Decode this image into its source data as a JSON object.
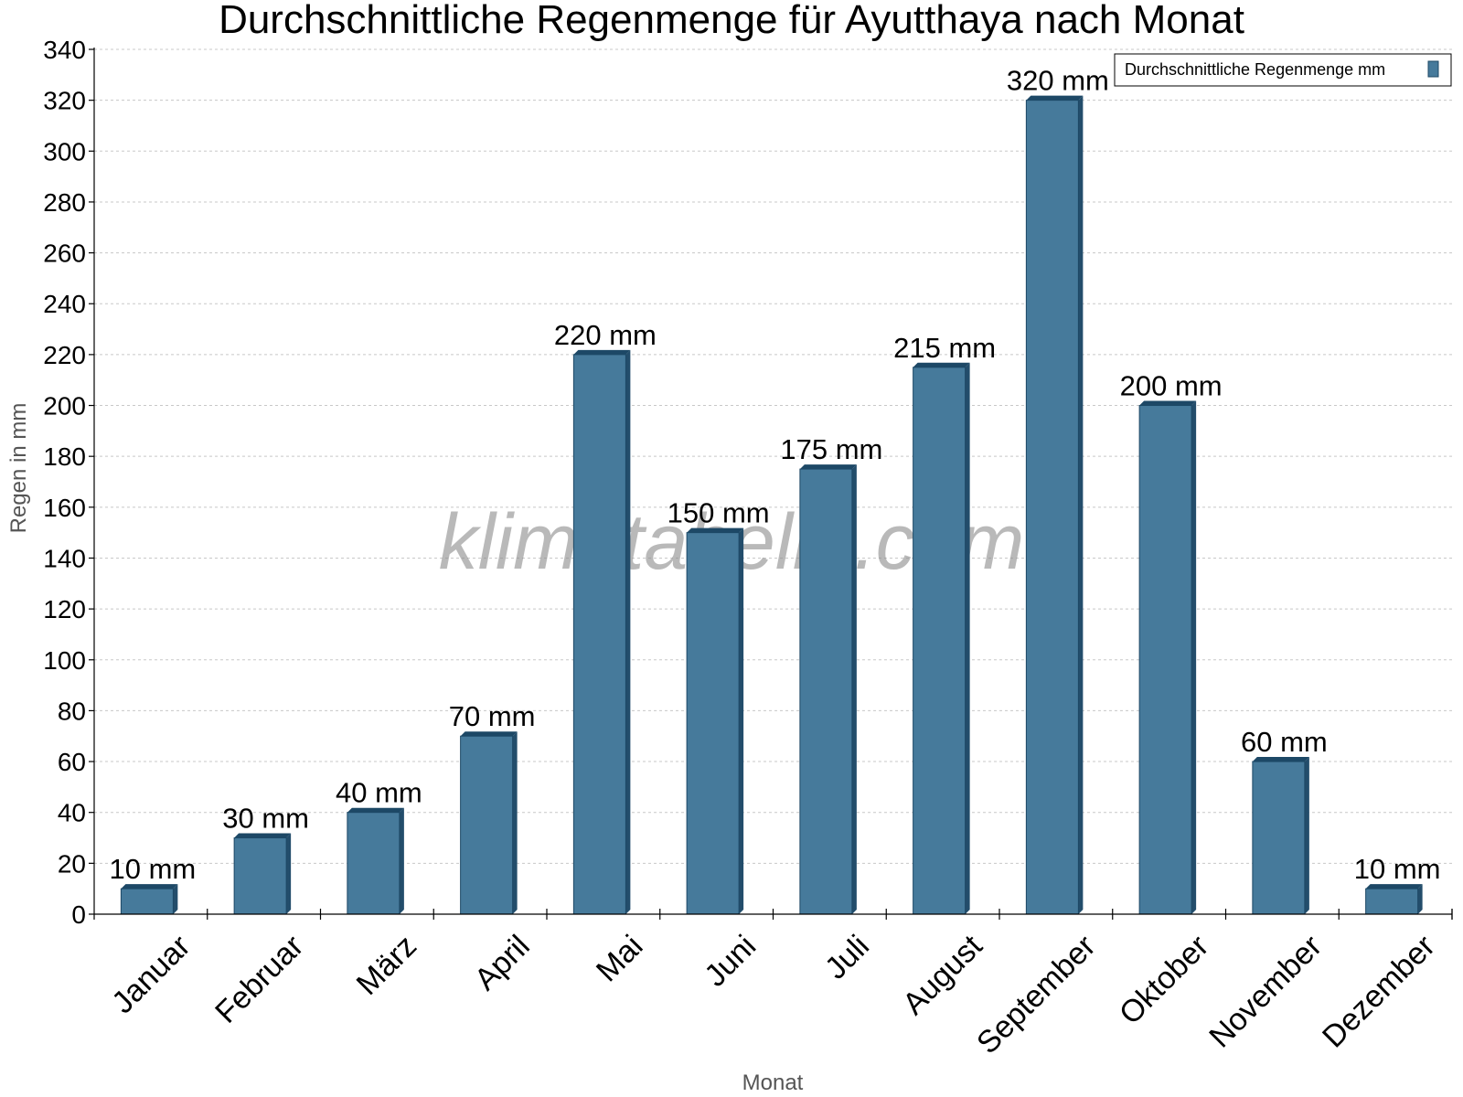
{
  "chart_data": {
    "type": "bar",
    "title": "Durchschnittliche Regenmenge für Ayutthaya nach Monat",
    "xlabel": "Monat",
    "ylabel": "Regen in mm",
    "categories": [
      "Januar",
      "Februar",
      "März",
      "April",
      "Mai",
      "Juni",
      "Juli",
      "August",
      "September",
      "Oktober",
      "November",
      "Dezember"
    ],
    "series": [
      {
        "name": "Durchschnittliche Regenmenge mm",
        "values": [
          10,
          30,
          40,
          70,
          220,
          150,
          175,
          215,
          320,
          200,
          60,
          10
        ],
        "labels": [
          "10 mm",
          "30 mm",
          "40 mm",
          "70 mm",
          "220 mm",
          "150 mm",
          "175 mm",
          "215 mm",
          "320 mm",
          "200 mm",
          "60 mm",
          "10 mm"
        ]
      }
    ],
    "ylim": [
      0,
      340
    ],
    "ytick_step": 20,
    "grid": true,
    "legend_position": "top-right",
    "colors": {
      "bar": "#467a9b",
      "bar_side": "#234d6b",
      "bar_top": "#1d4866"
    }
  },
  "watermark": "klimatabelle.com"
}
